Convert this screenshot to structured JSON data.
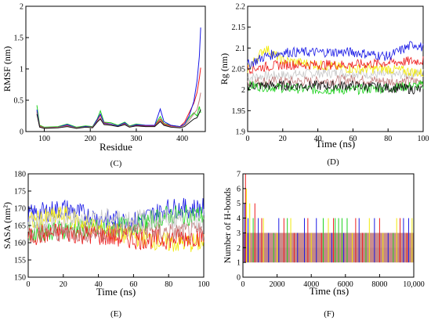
{
  "colors": {
    "black": "#111111",
    "red": "#ee1c1c",
    "green": "#1ed21e",
    "blue": "#1a1ae6",
    "yellow": "#f2ea08",
    "gray": "#c8c8c8",
    "brown": "#c27a7a"
  },
  "chart_data": [
    {
      "type": "line",
      "panel_label": "(C)",
      "xlabel": "Residue",
      "ylabel": "RMSF (nm)",
      "xlim": [
        60,
        450
      ],
      "ylim": [
        0,
        2
      ],
      "xticks": [
        100,
        200,
        300,
        400
      ],
      "yticks": [
        0,
        0.5,
        1,
        1.5,
        2
      ],
      "yticklabels": [
        "0",
        "0.5",
        "1",
        "1.5",
        "2"
      ],
      "series": [
        {
          "color_key": "green",
          "x": [
            84,
            90,
            100,
            130,
            150,
            170,
            190,
            205,
            215,
            222,
            230,
            245,
            260,
            275,
            285,
            300,
            320,
            340,
            352,
            360,
            375,
            395,
            405,
            415,
            425,
            432,
            437,
            440
          ],
          "y": [
            0.42,
            0.1,
            0.07,
            0.08,
            0.12,
            0.07,
            0.09,
            0.08,
            0.2,
            0.33,
            0.15,
            0.14,
            0.1,
            0.15,
            0.09,
            0.12,
            0.1,
            0.1,
            0.24,
            0.13,
            0.1,
            0.08,
            0.12,
            0.22,
            0.3,
            0.25,
            0.4,
            0.3
          ]
        },
        {
          "color_key": "red",
          "x": [
            84,
            90,
            100,
            130,
            150,
            170,
            190,
            205,
            215,
            222,
            230,
            245,
            260,
            275,
            285,
            300,
            320,
            340,
            352,
            360,
            375,
            395,
            405,
            415,
            425,
            432,
            437,
            440
          ],
          "y": [
            0.32,
            0.09,
            0.06,
            0.07,
            0.1,
            0.06,
            0.08,
            0.07,
            0.18,
            0.26,
            0.14,
            0.12,
            0.09,
            0.13,
            0.08,
            0.1,
            0.09,
            0.09,
            0.2,
            0.12,
            0.09,
            0.08,
            0.15,
            0.3,
            0.45,
            0.62,
            0.85,
            1.02
          ]
        },
        {
          "color_key": "blue",
          "x": [
            84,
            90,
            100,
            130,
            150,
            170,
            190,
            205,
            215,
            222,
            230,
            245,
            260,
            275,
            285,
            300,
            320,
            340,
            352,
            360,
            375,
            395,
            405,
            415,
            425,
            432,
            437,
            440
          ],
          "y": [
            0.35,
            0.08,
            0.06,
            0.07,
            0.11,
            0.06,
            0.08,
            0.07,
            0.19,
            0.28,
            0.13,
            0.12,
            0.09,
            0.14,
            0.08,
            0.11,
            0.1,
            0.1,
            0.36,
            0.16,
            0.1,
            0.08,
            0.12,
            0.25,
            0.48,
            0.8,
            1.2,
            1.66
          ]
        },
        {
          "color_key": "brown",
          "x": [
            84,
            90,
            100,
            130,
            150,
            170,
            190,
            205,
            215,
            222,
            230,
            245,
            260,
            275,
            285,
            300,
            320,
            340,
            352,
            360,
            375,
            395,
            405,
            415,
            425,
            432,
            437,
            440
          ],
          "y": [
            0.3,
            0.08,
            0.06,
            0.07,
            0.09,
            0.06,
            0.07,
            0.07,
            0.16,
            0.22,
            0.12,
            0.11,
            0.08,
            0.12,
            0.08,
            0.09,
            0.08,
            0.08,
            0.18,
            0.11,
            0.08,
            0.07,
            0.1,
            0.18,
            0.28,
            0.35,
            0.5,
            0.62
          ]
        },
        {
          "color_key": "black",
          "x": [
            84,
            90,
            100,
            130,
            150,
            170,
            190,
            205,
            215,
            222,
            230,
            245,
            260,
            275,
            285,
            300,
            320,
            340,
            352,
            360,
            375,
            395,
            405,
            415,
            425,
            432,
            437,
            440
          ],
          "y": [
            0.28,
            0.07,
            0.05,
            0.06,
            0.08,
            0.05,
            0.07,
            0.06,
            0.15,
            0.2,
            0.11,
            0.1,
            0.08,
            0.11,
            0.07,
            0.09,
            0.08,
            0.08,
            0.16,
            0.1,
            0.07,
            0.06,
            0.08,
            0.14,
            0.2,
            0.22,
            0.3,
            0.35
          ]
        }
      ]
    },
    {
      "type": "line",
      "panel_label": "(D)",
      "xlabel": "Time (ns)",
      "ylabel": "Rg (nm)",
      "xlim": [
        0,
        100
      ],
      "ylim": [
        1.9,
        2.2
      ],
      "xticks": [
        0,
        20,
        40,
        60,
        80,
        100
      ],
      "yticks": [
        1.9,
        1.95,
        2,
        2.05,
        2.1,
        2.15,
        2.2
      ],
      "yticklabels": [
        "1.9",
        "1.95",
        "2",
        "2.05",
        "2.1",
        "2.15",
        "2.2"
      ],
      "noise": 0.012,
      "series": [
        {
          "color_key": "gray",
          "x": [
            0,
            20,
            40,
            60,
            80,
            100
          ],
          "y": [
            2.03,
            2.035,
            2.04,
            2.04,
            2.035,
            2.04
          ]
        },
        {
          "color_key": "brown",
          "x": [
            0,
            20,
            40,
            60,
            80,
            100
          ],
          "y": [
            2.02,
            2.02,
            2.02,
            2.025,
            2.02,
            2.02
          ]
        },
        {
          "color_key": "green",
          "x": [
            0,
            20,
            40,
            60,
            80,
            100
          ],
          "y": [
            2.01,
            2.005,
            2.0,
            2.0,
            2.005,
            2.01
          ]
        },
        {
          "color_key": "black",
          "x": [
            0,
            20,
            40,
            60,
            80,
            100
          ],
          "y": [
            2.01,
            2.01,
            2.01,
            2.01,
            2.005,
            2.0
          ]
        },
        {
          "color_key": "yellow",
          "x": [
            0,
            10,
            20,
            40,
            60,
            80,
            100
          ],
          "y": [
            2.05,
            2.1,
            2.07,
            2.06,
            2.05,
            2.05,
            2.04
          ]
        },
        {
          "color_key": "red",
          "x": [
            0,
            20,
            40,
            60,
            80,
            100
          ],
          "y": [
            2.05,
            2.06,
            2.06,
            2.06,
            2.065,
            2.07
          ]
        },
        {
          "color_key": "blue",
          "x": [
            0,
            10,
            20,
            40,
            60,
            80,
            95,
            100
          ],
          "y": [
            2.06,
            2.08,
            2.09,
            2.09,
            2.09,
            2.08,
            2.11,
            2.1
          ]
        }
      ]
    },
    {
      "type": "line",
      "panel_label": "(E)",
      "xlabel": "Time (ns)",
      "ylabel": "SASA (nm²)",
      "xlim": [
        0,
        100
      ],
      "ylim": [
        150,
        180
      ],
      "xticks": [
        0,
        20,
        40,
        60,
        80,
        100
      ],
      "yticks": [
        150,
        155,
        160,
        165,
        170,
        175,
        180
      ],
      "yticklabels": [
        "150",
        "155",
        "160",
        "165",
        "170",
        "175",
        "180"
      ],
      "noise": 3.0,
      "series": [
        {
          "color_key": "blue",
          "x": [
            0,
            20,
            40,
            60,
            80,
            100
          ],
          "y": [
            168,
            170,
            167,
            166,
            170,
            170
          ]
        },
        {
          "color_key": "green",
          "x": [
            0,
            20,
            40,
            60,
            80,
            100
          ],
          "y": [
            163,
            164,
            164,
            165,
            168,
            168
          ]
        },
        {
          "color_key": "yellow",
          "x": [
            0,
            20,
            40,
            60,
            80,
            100
          ],
          "y": [
            166,
            168,
            164,
            162,
            160,
            160
          ]
        },
        {
          "color_key": "red",
          "x": [
            0,
            20,
            40,
            60,
            80,
            100
          ],
          "y": [
            162,
            163,
            162,
            161,
            161,
            162
          ]
        },
        {
          "color_key": "brown",
          "x": [
            0,
            20,
            40,
            60,
            80,
            100
          ],
          "y": [
            163,
            163,
            163,
            164,
            163,
            163
          ]
        },
        {
          "color_key": "gray",
          "x": [
            0,
            20,
            40,
            60,
            80,
            100
          ],
          "y": [
            166,
            167,
            167,
            167,
            167,
            167
          ]
        }
      ]
    },
    {
      "type": "line",
      "panel_label": "(F)",
      "xlabel": "Time (ns)",
      "ylabel": "Number of H-bonds",
      "xlim": [
        0,
        10000
      ],
      "ylim": [
        0,
        7
      ],
      "xticks": [
        0,
        2000,
        4000,
        6000,
        8000,
        10000
      ],
      "xticklabels": [
        "0",
        "2000",
        "4000",
        "6000",
        "8000",
        "10,000"
      ],
      "yticks": [
        0,
        1,
        2,
        3,
        4,
        5,
        6,
        7
      ],
      "yticklabels": [
        "0",
        "1",
        "2",
        "3",
        "4",
        "5",
        "6",
        "7"
      ],
      "bands": [
        {
          "color_key": "gray",
          "y": [
            1,
            2
          ]
        },
        {
          "color_key": "brown",
          "y": [
            1,
            3
          ]
        }
      ],
      "spikes": [
        {
          "color_key": "blue",
          "x": [
            100,
            300,
            900,
            1500,
            2100,
            3200,
            3600,
            4300,
            5200,
            5900,
            6800,
            7700,
            8500,
            9400,
            9700
          ],
          "y": [
            5,
            4,
            4,
            3,
            4,
            3,
            4,
            4,
            3,
            3,
            4,
            4,
            3,
            4,
            4
          ]
        },
        {
          "color_key": "green",
          "x": [
            600,
            1800,
            2600,
            4700,
            5400,
            5600,
            5800,
            6100,
            7200,
            8800
          ],
          "y": [
            4,
            3,
            4,
            4,
            4,
            4,
            4,
            4,
            3,
            3
          ]
        },
        {
          "color_key": "yellow",
          "x": [
            200,
            400,
            1200,
            2000,
            2800,
            4000,
            5000,
            6400,
            7400,
            8200,
            9000,
            9900
          ],
          "y": [
            6,
            5,
            4,
            3,
            4,
            3,
            4,
            3,
            4,
            3,
            4,
            4
          ]
        },
        {
          "color_key": "red",
          "x": [
            150,
            700,
            1100,
            2400,
            3000,
            3800,
            4600,
            5300,
            6600,
            7000,
            8000,
            9200,
            9600
          ],
          "y": [
            7,
            5,
            4,
            4,
            3,
            4,
            3,
            4,
            4,
            3,
            4,
            4,
            3
          ]
        }
      ]
    }
  ]
}
